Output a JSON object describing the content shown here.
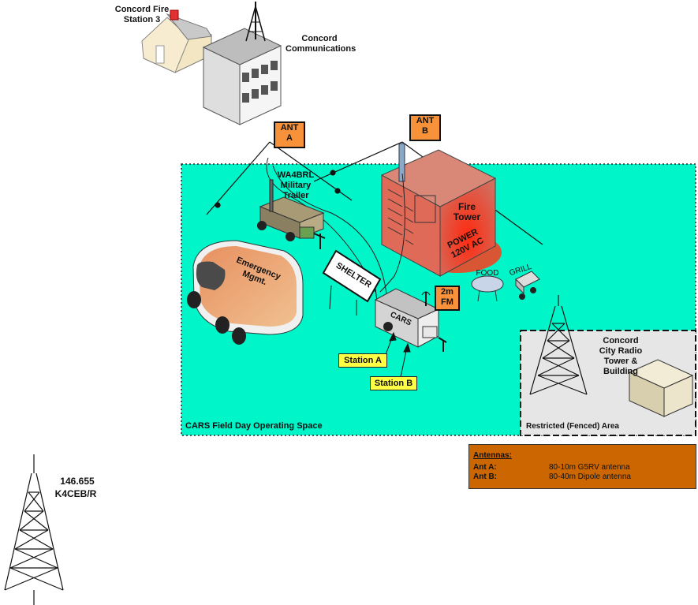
{
  "buildings": {
    "fire_station": "Concord Fire\nStation 3",
    "communications": "Concord\nCommunications",
    "trailer": "WA4BRL\nMilitary\nTrailer",
    "fire_tower": "Fire\nTower",
    "power": "POWER\n120V AC",
    "emergency": "Emergency\nMgmt.",
    "shelter": "SHELTER",
    "cars": "CARS",
    "food": "FOOD",
    "grill": "GRILL",
    "city_tower": "Concord\nCity Radio\nTower &\nBuilding"
  },
  "antennas": {
    "ant_a": "ANT\nA",
    "ant_b": "ANT\nB",
    "fm": "2m\nFM"
  },
  "stations": {
    "a": "Station A",
    "b": "Station B"
  },
  "areas": {
    "field_day": "CARS Field Day Operating Space",
    "restricted": "Restricted (Fenced) Area"
  },
  "repeater": {
    "freq": "146.655",
    "call": "K4CEB/R"
  },
  "legend": {
    "title": "Antennas:",
    "rows": [
      {
        "key": "Ant A:",
        "value": "80-10m G5RV antenna"
      },
      {
        "key": "Ant B:",
        "value": "80-40m Dipole antenna"
      }
    ]
  },
  "colors": {
    "field": "#00f5c8",
    "restricted": "#e6e6e6",
    "legend": "#cc6600",
    "tag_orange": "#f7923a",
    "tag_yellow": "#ffff44",
    "fire_tower": "#e8604a"
  }
}
